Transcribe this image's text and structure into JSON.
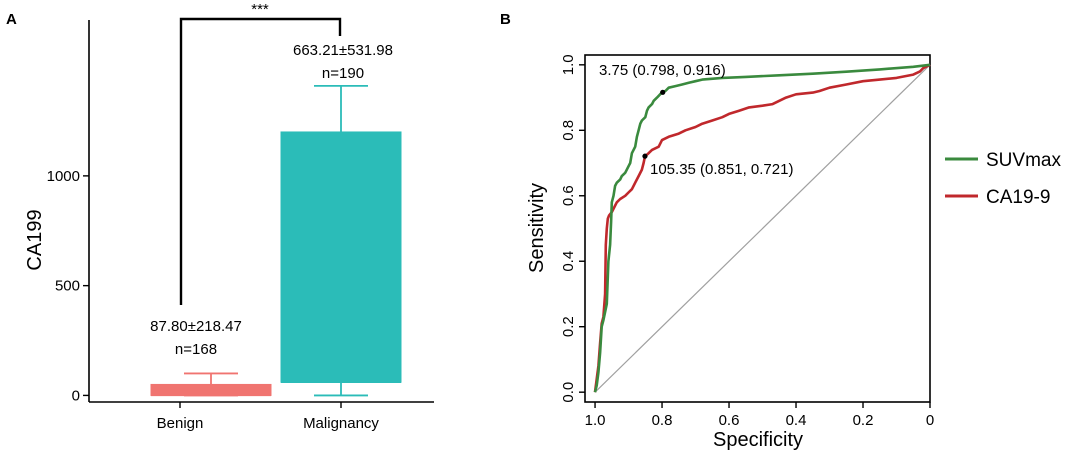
{
  "chart_data": [
    {
      "panel": "A",
      "type": "box",
      "title": "",
      "xlabel": "",
      "ylabel": "CA199",
      "ylim": [
        -30,
        1710
      ],
      "yticks": [
        "0",
        "500",
        "1000"
      ],
      "significance": "***",
      "categories": [
        "Benign",
        "Malignancy"
      ],
      "boxes": [
        {
          "category": "Benign",
          "min": 0,
          "q1": 0,
          "median": 0,
          "q3": 50,
          "max": 100,
          "color": "#f07470",
          "stat_label": "87.80±218.47",
          "n_label": "n=168"
        },
        {
          "category": "Malignancy",
          "min": 0,
          "q1": 60,
          "median": 60,
          "q3": 1200,
          "max": 1410,
          "color": "#2bbcb8",
          "stat_label": "663.21±531.98",
          "n_label": "n=190"
        }
      ]
    },
    {
      "panel": "B",
      "type": "line",
      "title": "",
      "xlabel": "Specificity",
      "ylabel": "Sensitivity",
      "xlim": [
        1.03,
        0.0
      ],
      "ylim": [
        -0.03,
        1.03
      ],
      "xticks": [
        "1.0",
        "0.8",
        "0.6",
        "0.4",
        "0.2",
        "0"
      ],
      "yticks": [
        "0.0",
        "0.2",
        "0.4",
        "0.6",
        "0.8",
        "1.0"
      ],
      "reference_line": true,
      "legend_position": "right",
      "series": [
        {
          "name": "SUVmax",
          "color": "#3a8a3e",
          "points": [
            [
              1.0,
              0.0
            ],
            [
              0.995,
              0.02
            ],
            [
              0.99,
              0.06
            ],
            [
              0.985,
              0.12
            ],
            [
              0.98,
              0.2
            ],
            [
              0.975,
              0.22
            ],
            [
              0.965,
              0.27
            ],
            [
              0.96,
              0.4
            ],
            [
              0.955,
              0.45
            ],
            [
              0.952,
              0.52
            ],
            [
              0.95,
              0.58
            ],
            [
              0.945,
              0.6
            ],
            [
              0.94,
              0.63
            ],
            [
              0.935,
              0.64
            ],
            [
              0.925,
              0.65
            ],
            [
              0.92,
              0.66
            ],
            [
              0.91,
              0.67
            ],
            [
              0.9,
              0.69
            ],
            [
              0.895,
              0.7
            ],
            [
              0.89,
              0.73
            ],
            [
              0.88,
              0.75
            ],
            [
              0.875,
              0.78
            ],
            [
              0.87,
              0.8
            ],
            [
              0.865,
              0.82
            ],
            [
              0.86,
              0.83
            ],
            [
              0.85,
              0.84
            ],
            [
              0.845,
              0.86
            ],
            [
              0.84,
              0.87
            ],
            [
              0.83,
              0.88
            ],
            [
              0.825,
              0.89
            ],
            [
              0.815,
              0.9
            ],
            [
              0.8,
              0.916
            ],
            [
              0.79,
              0.92
            ],
            [
              0.78,
              0.93
            ],
            [
              0.76,
              0.935
            ],
            [
              0.74,
              0.94
            ],
            [
              0.72,
              0.945
            ],
            [
              0.7,
              0.95
            ],
            [
              0.68,
              0.955
            ],
            [
              0.62,
              0.96
            ],
            [
              0.55,
              0.963
            ],
            [
              0.45,
              0.968
            ],
            [
              0.35,
              0.973
            ],
            [
              0.25,
              0.979
            ],
            [
              0.15,
              0.986
            ],
            [
              0.05,
              0.994
            ],
            [
              0.0,
              1.0
            ]
          ]
        },
        {
          "name": "CA19-9",
          "color": "#c0282c",
          "points": [
            [
              1.0,
              0.0
            ],
            [
              0.995,
              0.04
            ],
            [
              0.99,
              0.08
            ],
            [
              0.985,
              0.15
            ],
            [
              0.98,
              0.21
            ],
            [
              0.975,
              0.23
            ],
            [
              0.97,
              0.3
            ],
            [
              0.968,
              0.45
            ],
            [
              0.965,
              0.5
            ],
            [
              0.962,
              0.53
            ],
            [
              0.958,
              0.54
            ],
            [
              0.95,
              0.55
            ],
            [
              0.94,
              0.57
            ],
            [
              0.935,
              0.58
            ],
            [
              0.925,
              0.59
            ],
            [
              0.91,
              0.6
            ],
            [
              0.9,
              0.61
            ],
            [
              0.89,
              0.62
            ],
            [
              0.88,
              0.64
            ],
            [
              0.87,
              0.66
            ],
            [
              0.86,
              0.68
            ],
            [
              0.855,
              0.7
            ],
            [
              0.851,
              0.721
            ],
            [
              0.84,
              0.73
            ],
            [
              0.83,
              0.74
            ],
            [
              0.81,
              0.75
            ],
            [
              0.8,
              0.77
            ],
            [
              0.78,
              0.78
            ],
            [
              0.75,
              0.79
            ],
            [
              0.73,
              0.8
            ],
            [
              0.7,
              0.81
            ],
            [
              0.68,
              0.82
            ],
            [
              0.65,
              0.83
            ],
            [
              0.62,
              0.84
            ],
            [
              0.6,
              0.85
            ],
            [
              0.57,
              0.86
            ],
            [
              0.54,
              0.87
            ],
            [
              0.5,
              0.875
            ],
            [
              0.47,
              0.88
            ],
            [
              0.45,
              0.89
            ],
            [
              0.43,
              0.9
            ],
            [
              0.4,
              0.91
            ],
            [
              0.35,
              0.915
            ],
            [
              0.33,
              0.92
            ],
            [
              0.3,
              0.93
            ],
            [
              0.25,
              0.94
            ],
            [
              0.2,
              0.95
            ],
            [
              0.15,
              0.955
            ],
            [
              0.1,
              0.96
            ],
            [
              0.05,
              0.97
            ],
            [
              0.03,
              0.98
            ],
            [
              0.02,
              0.99
            ],
            [
              0.0,
              1.0
            ]
          ]
        }
      ],
      "annotations": [
        {
          "text": "3.75 (0.798, 0.916)",
          "series": "SUVmax",
          "point": [
            0.798,
            0.916
          ]
        },
        {
          "text": "105.35 (0.851, 0.721)",
          "series": "CA19-9",
          "point": [
            0.851,
            0.721
          ]
        }
      ]
    }
  ],
  "panel_labels": [
    "A",
    "B"
  ],
  "colors": {
    "axis": "#000000",
    "diagonal": "#a0a0a0",
    "background": "#ffffff"
  }
}
